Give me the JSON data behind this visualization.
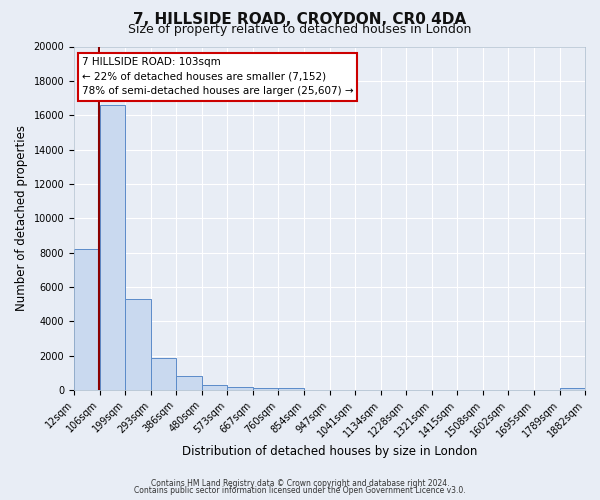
{
  "title": "7, HILLSIDE ROAD, CROYDON, CR0 4DA",
  "subtitle": "Size of property relative to detached houses in London",
  "xlabel": "Distribution of detached houses by size in London",
  "ylabel": "Number of detached properties",
  "bar_color": "#c9d9ef",
  "bar_edge_color": "#5b8bc9",
  "vline_color": "#8b0000",
  "vline_x": 103,
  "annotation_title": "7 HILLSIDE ROAD: 103sqm",
  "annotation_line1": "← 22% of detached houses are smaller (7,152)",
  "annotation_line2": "78% of semi-detached houses are larger (25,607) →",
  "annotation_box_color": "#ffffff",
  "annotation_border_color": "#cc0000",
  "footer_line1": "Contains HM Land Registry data © Crown copyright and database right 2024.",
  "footer_line2": "Contains public sector information licensed under the Open Government Licence v3.0.",
  "bin_edges": [
    12,
    106,
    199,
    293,
    386,
    480,
    573,
    667,
    760,
    854,
    947,
    1041,
    1134,
    1228,
    1321,
    1415,
    1508,
    1602,
    1695,
    1789,
    1882
  ],
  "bin_heights": [
    8200,
    16600,
    5300,
    1850,
    800,
    300,
    200,
    130,
    100,
    0,
    0,
    0,
    0,
    0,
    0,
    0,
    0,
    0,
    0,
    100
  ],
  "ylim": [
    0,
    20000
  ],
  "yticks": [
    0,
    2000,
    4000,
    6000,
    8000,
    10000,
    12000,
    14000,
    16000,
    18000,
    20000
  ],
  "xlim": [
    12,
    1882
  ],
  "background_color": "#e8edf5",
  "plot_bg_color": "#e8edf5",
  "grid_color": "#ffffff",
  "title_fontsize": 11,
  "subtitle_fontsize": 9,
  "axis_label_fontsize": 8.5,
  "tick_fontsize": 7
}
